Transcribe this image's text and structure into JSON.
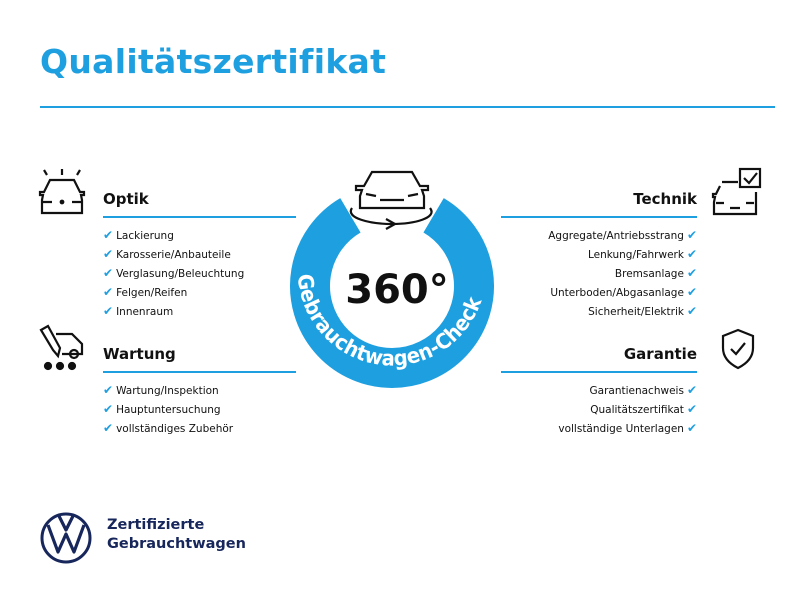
{
  "title": "Qualitätszertifikat",
  "center": {
    "big": "360°",
    "ring_text": "Gebrauchtwagen-Check"
  },
  "colors": {
    "accent": "#1e9fe0",
    "brand": "#17265b"
  },
  "sections": {
    "optik": {
      "title": "Optik",
      "icon": "car-lights-icon",
      "items": [
        "Lackierung",
        "Karosserie/Anbauteile",
        "Verglasung/Beleuchtung",
        "Felgen/Reifen",
        "Innenraum"
      ]
    },
    "wartung": {
      "title": "Wartung",
      "icon": "car-service-icon",
      "items": [
        "Wartung/Inspektion",
        "Hauptuntersuchung",
        "vollständiges Zubehör"
      ]
    },
    "technik": {
      "title": "Technik",
      "icon": "car-checklist-icon",
      "items": [
        "Aggregate/Antriebsstrang",
        "Lenkung/Fahrwerk",
        "Bremsanlage",
        "Unterboden/Abgasanlage",
        "Sicherheit/Elektrik"
      ]
    },
    "garantie": {
      "title": "Garantie",
      "icon": "shield-check-icon",
      "items": [
        "Garantienachweis",
        "Qualitätszertifikat",
        "vollständige Unterlagen"
      ]
    }
  },
  "check_mark": "✔",
  "brand": {
    "line1": "Zertifizierte",
    "line2": "Gebrauchtwagen"
  }
}
